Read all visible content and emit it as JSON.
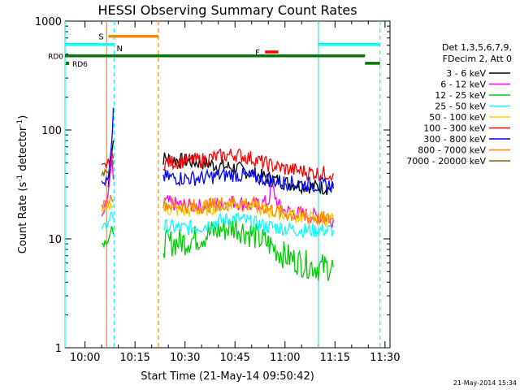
{
  "chart_data": {
    "type": "line",
    "title": "HESSI Observing Summary Count Rates",
    "xlabel": "Start Time (21-May-14 09:50:42)",
    "ylabel_main": "Count Rate (s",
    "ylabel_sup1": "-1",
    "ylabel_mid": " detector",
    "ylabel_sup2": "-1",
    "ylabel_end": ")",
    "ylabel": "Count Rate (s^-1 detector^-1)",
    "y_scale": "log",
    "ylim": [
      1,
      1000
    ],
    "xlim_minutes": [
      -6,
      91.5
    ],
    "x_ticks": [
      {
        "minute": 0,
        "label": "10:00"
      },
      {
        "minute": 15,
        "label": "10:15"
      },
      {
        "minute": 30,
        "label": "10:30"
      },
      {
        "minute": 45,
        "label": "10:45"
      },
      {
        "minute": 60,
        "label": "11:00"
      },
      {
        "minute": 75,
        "label": "11:15"
      },
      {
        "minute": 90,
        "label": "11:30"
      }
    ],
    "y_ticks": [
      {
        "value": 1,
        "label": "1"
      },
      {
        "value": 10,
        "label": "10"
      },
      {
        "value": 100,
        "label": "100"
      },
      {
        "value": 1000,
        "label": "1000"
      }
    ],
    "legend_header": [
      "Det 1,3,5,6,7,9,",
      "FDecim 2, Att 0"
    ],
    "legend_placement": "right",
    "series": [
      {
        "name": "3 - 6 keV",
        "color": "#000000",
        "segments": [
          [
            [
              7,
              30
            ],
            [
              7.5,
              45
            ],
            [
              8,
              60
            ],
            [
              8.5,
              80
            ]
          ],
          [
            [
              23.5,
              55
            ],
            [
              30,
              52
            ],
            [
              35,
              50
            ],
            [
              40,
              47
            ],
            [
              45,
              45
            ],
            [
              50,
              40
            ],
            [
              55,
              36
            ],
            [
              60,
              33
            ],
            [
              65,
              31
            ],
            [
              70,
              30
            ],
            [
              74.5,
              29
            ]
          ]
        ]
      },
      {
        "name": "6 - 12 keV",
        "color": "#ff00ff",
        "segments": [
          [
            [
              5,
              16
            ],
            [
              6,
              20
            ],
            [
              7,
              25
            ],
            [
              8,
              55
            ],
            [
              8.5,
              35
            ]
          ],
          [
            [
              23.5,
              22
            ],
            [
              30,
              20
            ],
            [
              35,
              20
            ],
            [
              40,
              21
            ],
            [
              45,
              22
            ],
            [
              50,
              20
            ],
            [
              55,
              22
            ],
            [
              56,
              30
            ],
            [
              57,
              25
            ],
            [
              58,
              20
            ],
            [
              60,
              18
            ],
            [
              65,
              17
            ],
            [
              70,
              16
            ],
            [
              74.5,
              15
            ]
          ]
        ]
      },
      {
        "name": "12 - 25 keV",
        "color": "#00cc00",
        "segments": [
          [
            [
              5,
              9
            ],
            [
              6,
              9.5
            ],
            [
              7,
              10
            ],
            [
              8,
              12
            ],
            [
              8.5,
              11
            ]
          ],
          [
            [
              23.5,
              9
            ],
            [
              30,
              9.5
            ],
            [
              35,
              10.5
            ],
            [
              40,
              12
            ],
            [
              45,
              13
            ],
            [
              50,
              11
            ],
            [
              55,
              9
            ],
            [
              60,
              7
            ],
            [
              65,
              6
            ],
            [
              70,
              5.5
            ],
            [
              74.5,
              5.5
            ]
          ]
        ]
      },
      {
        "name": "25 - 50 keV",
        "color": "#00ffff",
        "segments": [
          [
            [
              5,
              12
            ],
            [
              6,
              13
            ],
            [
              7,
              14
            ],
            [
              8,
              18
            ],
            [
              8.5,
              15
            ]
          ],
          [
            [
              23.5,
              13
            ],
            [
              30,
              12.5
            ],
            [
              35,
              13
            ],
            [
              40,
              14.5
            ],
            [
              45,
              15.5
            ],
            [
              50,
              14
            ],
            [
              55,
              13
            ],
            [
              60,
              12.5
            ],
            [
              65,
              12
            ],
            [
              70,
              12
            ],
            [
              74.5,
              12
            ]
          ]
        ]
      },
      {
        "name": "50 - 100 keV",
        "color": "#ffcc00",
        "segments": [
          [
            [
              5,
              18
            ],
            [
              6,
              18
            ],
            [
              7,
              19
            ],
            [
              8,
              21
            ],
            [
              8.5,
              20
            ]
          ],
          [
            [
              23.5,
              19
            ],
            [
              30,
              18
            ],
            [
              35,
              18.5
            ],
            [
              40,
              20
            ],
            [
              45,
              21
            ],
            [
              50,
              20
            ],
            [
              55,
              18
            ],
            [
              60,
              17
            ],
            [
              65,
              16
            ],
            [
              70,
              15
            ],
            [
              74.5,
              15
            ]
          ]
        ]
      },
      {
        "name": "100 - 300 keV",
        "color": "#ff0000",
        "segments": [
          [
            [
              5,
              45
            ],
            [
              6,
              47
            ],
            [
              7,
              50
            ],
            [
              8,
              60
            ],
            [
              8.5,
              55
            ]
          ],
          [
            [
              23.5,
              50
            ],
            [
              30,
              52
            ],
            [
              35,
              53
            ],
            [
              40,
              57
            ],
            [
              45,
              60
            ],
            [
              50,
              55
            ],
            [
              55,
              48
            ],
            [
              60,
              44
            ],
            [
              65,
              42
            ],
            [
              70,
              40
            ],
            [
              74.5,
              40
            ]
          ]
        ]
      },
      {
        "name": "300 - 800 keV",
        "color": "#0000ff",
        "segments": [
          [
            [
              5,
              32
            ],
            [
              6,
              33
            ],
            [
              7,
              35
            ],
            [
              8,
              70
            ],
            [
              8.5,
              160
            ]
          ],
          [
            [
              23.5,
              37
            ],
            [
              30,
              36
            ],
            [
              35,
              36
            ],
            [
              40,
              38
            ],
            [
              45,
              39
            ],
            [
              50,
              37
            ],
            [
              55,
              35
            ],
            [
              60,
              33
            ],
            [
              65,
              32
            ],
            [
              70,
              31
            ],
            [
              74.5,
              31
            ]
          ]
        ]
      },
      {
        "name": "800 - 7000 keV",
        "color": "#ff8800",
        "segments": [
          [
            [
              5,
              20
            ],
            [
              6,
              21
            ],
            [
              7,
              22
            ],
            [
              8,
              25
            ],
            [
              8.5,
              23
            ]
          ],
          [
            [
              23.5,
              21
            ],
            [
              30,
              20
            ],
            [
              35,
              20
            ],
            [
              40,
              21
            ],
            [
              45,
              22
            ],
            [
              50,
              21
            ],
            [
              55,
              19
            ],
            [
              60,
              17
            ],
            [
              65,
              16
            ],
            [
              70,
              15.5
            ],
            [
              74.5,
              15
            ]
          ]
        ]
      },
      {
        "name": "7000 - 20000 keV",
        "color": "#886600",
        "segments": [
          [
            [
              5,
              40
            ],
            [
              6,
              42
            ],
            [
              7,
              44
            ],
            [
              8,
              50
            ],
            [
              8.5,
              48
            ]
          ]
        ]
      }
    ],
    "flag_bars": [
      {
        "label": "S",
        "color": "#ff8800",
        "x_start": 7,
        "x_end": 22,
        "y": 725,
        "label_side": "left"
      },
      {
        "label": "N",
        "color": "#00ffff",
        "x_start": -6,
        "x_end": 8.5,
        "y": 610,
        "label_side": "right"
      },
      {
        "label": "N",
        "color": "#00ffff",
        "x_start": 70,
        "x_end": 88.5,
        "y": 610,
        "label_side": "none"
      },
      {
        "label": "RD0",
        "color": "#007700",
        "x_start": -6,
        "x_end": 84,
        "y": 480,
        "label_side": "outside-left"
      },
      {
        "label": "RD6",
        "color": "#007700",
        "x_start": -6,
        "x_end": -6,
        "y": 410,
        "label_side": "inside-left"
      },
      {
        "label": "RD6",
        "color": "#007700",
        "x_start": 84,
        "x_end": 88.5,
        "y": 410,
        "label_side": "none"
      },
      {
        "label": "F",
        "color": "#ff0000",
        "x_start": 54,
        "x_end": 58,
        "y": 520,
        "label_side": "left"
      }
    ],
    "vertical_markers": [
      {
        "minute": 6.5,
        "color": "#ff8800",
        "style": "solid"
      },
      {
        "minute": 8.7,
        "color": "#00ffff",
        "style": "dashed"
      },
      {
        "minute": 22,
        "color": "#ff8800",
        "style": "dashed"
      },
      {
        "minute": 70,
        "color": "#00ffff",
        "style": "solid"
      },
      {
        "minute": 88.5,
        "color": "#00ffff",
        "style": "dashed"
      },
      {
        "minute": -6,
        "color": "#00ffff",
        "style": "solid"
      }
    ]
  },
  "footer": {
    "timestamp": "21-May-2014 15:34"
  }
}
